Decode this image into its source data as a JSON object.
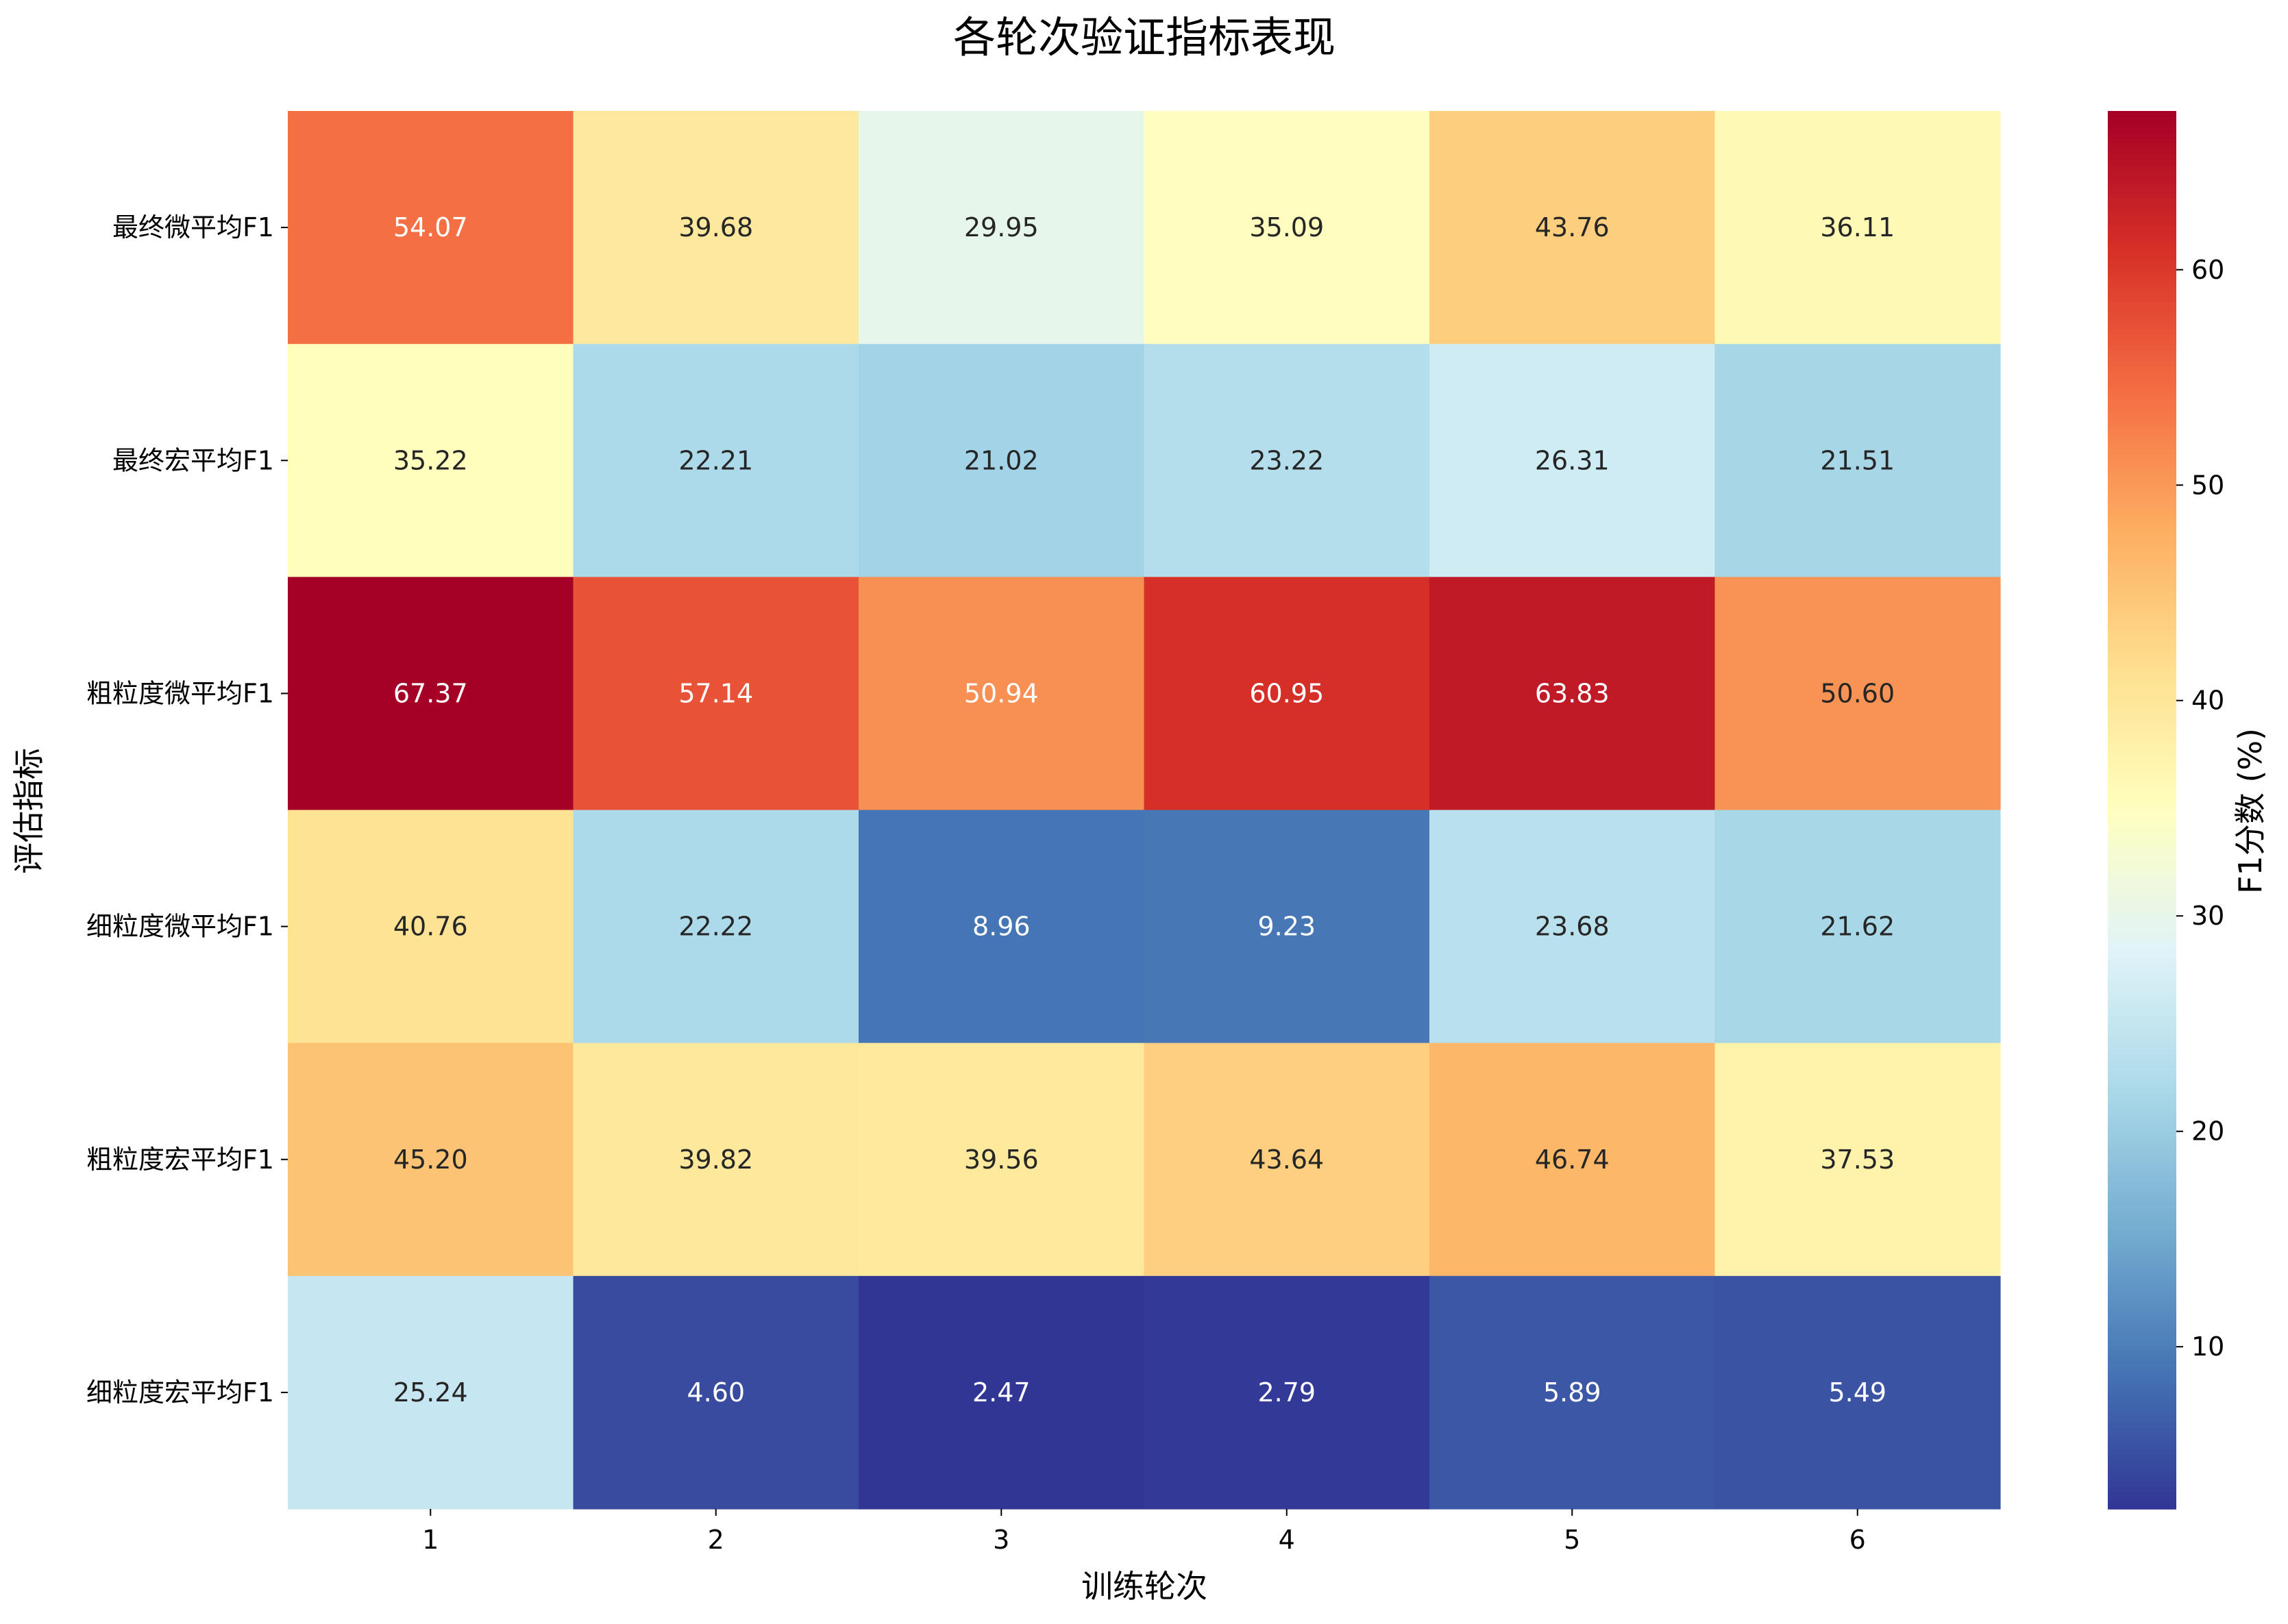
{
  "chart_data": {
    "type": "heatmap",
    "title": "各轮次验证指标表现",
    "xlabel": "训练轮次",
    "ylabel": "评估指标",
    "colorbar_label": "F1分数 (%)",
    "x_categories": [
      "1",
      "2",
      "3",
      "4",
      "5",
      "6"
    ],
    "y_categories": [
      "最终微平均F1",
      "最终宏平均F1",
      "粗粒度微平均F1",
      "细粒度微平均F1",
      "粗粒度宏平均F1",
      "细粒度宏平均F1"
    ],
    "values": [
      [
        54.07,
        39.68,
        29.95,
        35.09,
        43.76,
        36.11
      ],
      [
        35.22,
        22.21,
        21.02,
        23.22,
        26.31,
        21.51
      ],
      [
        67.37,
        57.14,
        50.94,
        60.95,
        63.83,
        50.6
      ],
      [
        40.76,
        22.22,
        8.96,
        9.23,
        23.68,
        21.62
      ],
      [
        45.2,
        39.82,
        39.56,
        43.64,
        46.74,
        37.53
      ],
      [
        25.24,
        4.6,
        2.47,
        2.79,
        5.89,
        5.49
      ]
    ],
    "value_labels": [
      [
        "54.07",
        "39.68",
        "29.95",
        "35.09",
        "43.76",
        "36.11"
      ],
      [
        "35.22",
        "22.21",
        "21.02",
        "23.22",
        "26.31",
        "21.51"
      ],
      [
        "67.37",
        "57.14",
        "50.94",
        "60.95",
        "63.83",
        "50.60"
      ],
      [
        "40.76",
        "22.22",
        "8.96",
        "9.23",
        "23.68",
        "21.62"
      ],
      [
        "45.20",
        "39.82",
        "39.56",
        "43.64",
        "46.74",
        "37.53"
      ],
      [
        "25.24",
        "4.60",
        "2.47",
        "2.79",
        "5.89",
        "5.49"
      ]
    ],
    "vmin": 2.47,
    "vmax": 67.37,
    "colormap": "RdYlBu_r",
    "colorbar_ticks": [
      10,
      20,
      30,
      40,
      50,
      60
    ],
    "colorbar_tick_labels": [
      "10",
      "20",
      "30",
      "40",
      "50",
      "60"
    ]
  }
}
